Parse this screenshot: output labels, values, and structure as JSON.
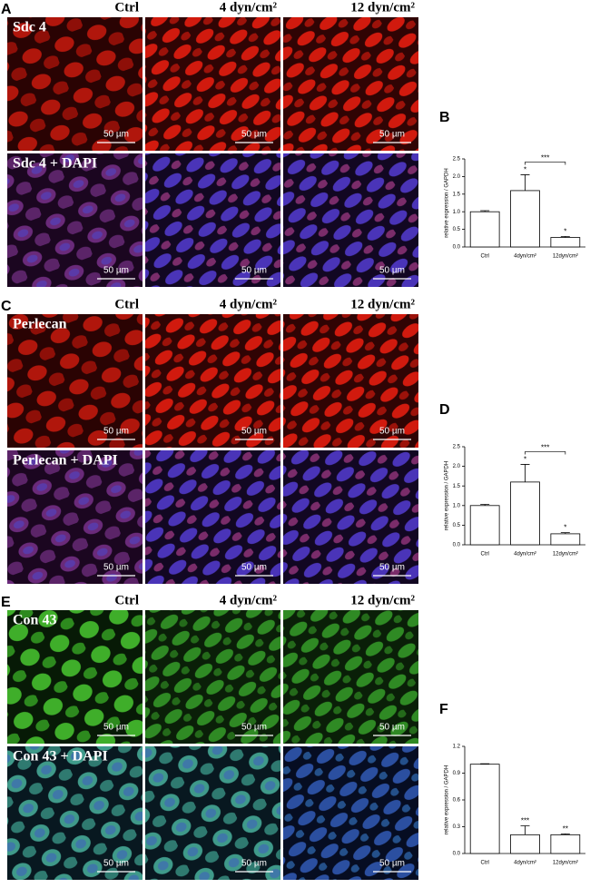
{
  "panels": [
    {
      "letter": "A",
      "columns": [
        "Ctrl",
        "4 dyn/cm²",
        "12 dyn/cm²"
      ],
      "rows": [
        {
          "label": "Sdc 4",
          "scale_bars": [
            "50 µm",
            "50 µm",
            "50 µm"
          ]
        },
        {
          "label": "Sdc 4 + DAPI",
          "scale_bars": [
            "50 µm",
            "50 µm",
            "50 µm"
          ]
        }
      ]
    },
    {
      "letter": "C",
      "columns": [
        "Ctrl",
        "4 dyn/cm²",
        "12 dyn/cm²"
      ],
      "rows": [
        {
          "label": "Perlecan",
          "scale_bars": [
            "50 µm",
            "50 µm",
            "50 µm"
          ]
        },
        {
          "label": "Perlecan + DAPI",
          "scale_bars": [
            "50 µm",
            "50 µm",
            "50 µm"
          ]
        }
      ]
    },
    {
      "letter": "E",
      "columns": [
        "Ctrl",
        "4 dyn/cm²",
        "12 dyn/cm²"
      ],
      "rows": [
        {
          "label": "Con 43",
          "scale_bars": [
            "50 µm",
            "50 µm",
            "50 µm"
          ]
        },
        {
          "label": "Con 43 + DAPI",
          "scale_bars": [
            "50 µm",
            "50 µm",
            "50 µm"
          ]
        }
      ]
    }
  ],
  "chart_data": [
    {
      "type": "bar",
      "label": "B",
      "y_label": "relative expression / GAPDH",
      "categories": [
        "Ctrl",
        "4dyn/cm²",
        "12dyn/cm²"
      ],
      "values": [
        1.0,
        1.6,
        0.27
      ],
      "errors": [
        0.03,
        0.45,
        0.03
      ],
      "significance": [
        null,
        "*",
        "*"
      ],
      "bracket": {
        "text": "***",
        "from": "4dyn/cm²",
        "to": "12dyn/cm²"
      },
      "color": "#ffffff",
      "ylim": [
        0,
        2.5
      ],
      "yticks": [
        {
          "value": 0,
          "label": "0.0"
        },
        {
          "value": 0.5,
          "label": "0.5"
        },
        {
          "value": 1,
          "label": "1.0"
        },
        {
          "value": 1.5,
          "label": "1.5"
        },
        {
          "value": 2,
          "label": "2.0"
        },
        {
          "value": 2.5,
          "label": "2.5"
        }
      ]
    },
    {
      "type": "bar",
      "label": "D",
      "y_label": "relative expression / GAPDH",
      "categories": [
        "Ctrl",
        "4dyn/cm²",
        "12dyn/cm²"
      ],
      "values": [
        1.0,
        1.6,
        0.28
      ],
      "errors": [
        0.03,
        0.45,
        0.03
      ],
      "significance": [
        null,
        "*",
        "*"
      ],
      "bracket": {
        "text": "***",
        "from": "4dyn/cm²",
        "to": "12dyn/cm²"
      },
      "color": "#ffffff",
      "ylim": [
        0,
        2.5
      ],
      "yticks": [
        {
          "value": 0,
          "label": "0.0"
        },
        {
          "value": 0.5,
          "label": "0.5"
        },
        {
          "value": 1,
          "label": "1.0"
        },
        {
          "value": 1.5,
          "label": "1.5"
        },
        {
          "value": 2,
          "label": "2.0"
        },
        {
          "value": 2.5,
          "label": "2.5"
        }
      ]
    },
    {
      "type": "bar",
      "label": "F",
      "y_label": "relative expression / GAPDH",
      "categories": [
        "Ctrl",
        "4dyn/cm²",
        "12dyn/cm²"
      ],
      "values": [
        1.0,
        0.21,
        0.21
      ],
      "errors": [
        0.005,
        0.1,
        0.01
      ],
      "significance": [
        null,
        "***",
        "**"
      ],
      "color": "#ffffff",
      "ylim": [
        0,
        1.2
      ],
      "yticks": [
        {
          "value": 0,
          "label": "0.0"
        },
        {
          "value": 0.3,
          "label": "0.3"
        },
        {
          "value": 0.6,
          "label": "0.6"
        },
        {
          "value": 0.9,
          "label": "0.9"
        },
        {
          "value": 1.2,
          "label": "1.2"
        }
      ]
    }
  ]
}
